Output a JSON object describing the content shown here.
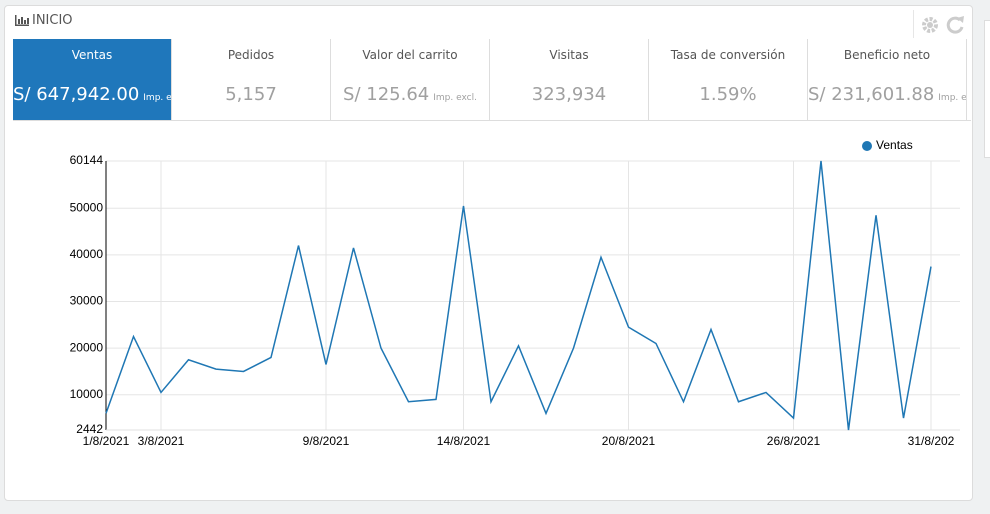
{
  "header": {
    "title": "INICIO"
  },
  "tiles": [
    {
      "label": "Ventas",
      "value": "S/ 647,942.00",
      "note": "Imp. excl.",
      "active": true
    },
    {
      "label": "Pedidos",
      "value": "5,157"
    },
    {
      "label": "Valor del carrito",
      "value": "S/ 125.64",
      "note": "Imp. excl."
    },
    {
      "label": "Visitas",
      "value": "323,934"
    },
    {
      "label": "Tasa de conversión",
      "value": "1.59%"
    },
    {
      "label": "Beneficio neto",
      "value": "S/ 231,601.88",
      "note": "Imp. excl."
    }
  ],
  "chart_data": {
    "type": "line",
    "x": [
      1,
      2,
      3,
      4,
      5,
      6,
      7,
      8,
      9,
      10,
      11,
      12,
      13,
      14,
      15,
      16,
      17,
      18,
      19,
      20,
      21,
      22,
      23,
      24,
      25,
      26,
      27,
      28,
      29,
      30,
      31
    ],
    "xlim": [
      1,
      31
    ],
    "xticks": [
      {
        "value": 1,
        "label": "1/8/2021"
      },
      {
        "value": 3,
        "label": "3/8/2021"
      },
      {
        "value": 9,
        "label": "9/8/2021"
      },
      {
        "value": 14,
        "label": "14/8/2021"
      },
      {
        "value": 20,
        "label": "20/8/2021"
      },
      {
        "value": 26,
        "label": "26/8/2021"
      },
      {
        "value": 31,
        "label": "31/8/202"
      }
    ],
    "ylim": [
      2442,
      60144
    ],
    "yticks": [
      2442,
      10000,
      20000,
      30000,
      40000,
      50000,
      60144
    ],
    "grid": true,
    "legend": "top-right",
    "series": [
      {
        "name": "Ventas",
        "color": "#1f77b4",
        "values": [
          6000,
          22500,
          10500,
          17500,
          15500,
          15000,
          18000,
          42000,
          16500,
          41500,
          20000,
          8500,
          9000,
          50500,
          8500,
          20500,
          6000,
          20000,
          39500,
          24500,
          21000,
          8500,
          24000,
          8500,
          10500,
          5000,
          60144,
          2442,
          48500,
          5000,
          37500
        ]
      }
    ]
  }
}
